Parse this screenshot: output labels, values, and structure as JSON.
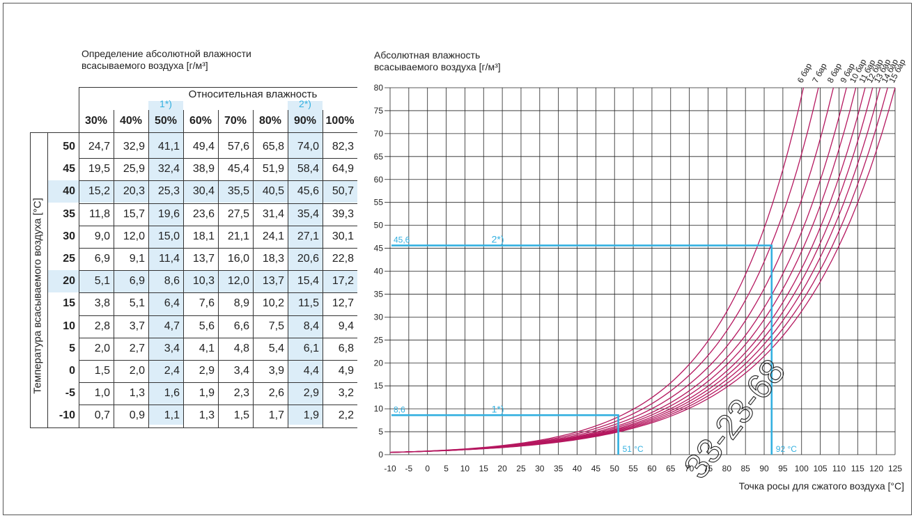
{
  "table": {
    "title_line1": "Определение абсолютной влажности",
    "title_line2": "всасываемого воздуха [г/м³]",
    "col_group_label": "Относительная влажность",
    "row_axis_label": "Температура всасываемого воздуха [°C]",
    "columns": [
      "30%",
      "40%",
      "50%",
      "60%",
      "70%",
      "80%",
      "90%",
      "100%"
    ],
    "rows": [
      {
        "t": "50",
        "v": [
          "24,7",
          "32,9",
          "41,1",
          "49,4",
          "57,6",
          "65,8",
          "74,0",
          "82,3"
        ]
      },
      {
        "t": "45",
        "v": [
          "19,5",
          "25,9",
          "32,4",
          "38,9",
          "45,4",
          "51,9",
          "58,4",
          "64,9"
        ]
      },
      {
        "t": "40",
        "v": [
          "15,2",
          "20,3",
          "25,3",
          "30,4",
          "35,5",
          "40,5",
          "45,6",
          "50,7"
        ]
      },
      {
        "t": "35",
        "v": [
          "11,8",
          "15,7",
          "19,6",
          "23,6",
          "27,5",
          "31,4",
          "35,4",
          "39,3"
        ]
      },
      {
        "t": "30",
        "v": [
          "9,0",
          "12,0",
          "15,0",
          "18,1",
          "21,1",
          "24,1",
          "27,1",
          "30,1"
        ]
      },
      {
        "t": "25",
        "v": [
          "6,9",
          "9,1",
          "11,4",
          "13,7",
          "16,0",
          "18,3",
          "20,6",
          "22,8"
        ]
      },
      {
        "t": "20",
        "v": [
          "5,1",
          "6,9",
          "8,6",
          "10,3",
          "12,0",
          "13,7",
          "15,4",
          "17,2"
        ]
      },
      {
        "t": "15",
        "v": [
          "3,8",
          "5,1",
          "6,4",
          "7,6",
          "8,9",
          "10,2",
          "11,5",
          "12,7"
        ]
      },
      {
        "t": "10",
        "v": [
          "2,8",
          "3,7",
          "4,7",
          "5,6",
          "6,6",
          "7,5",
          "8,4",
          "9,4"
        ]
      },
      {
        "t": "5",
        "v": [
          "2,0",
          "2,7",
          "3,4",
          "4,1",
          "4,8",
          "5,4",
          "6,1",
          "6,8"
        ]
      },
      {
        "t": "0",
        "v": [
          "1,5",
          "2,0",
          "2,4",
          "2,9",
          "3,4",
          "3,9",
          "4,4",
          "4,9"
        ]
      },
      {
        "t": "-5",
        "v": [
          "1,0",
          "1,3",
          "1,6",
          "1,9",
          "2,3",
          "2,6",
          "2,9",
          "3,2"
        ]
      },
      {
        "t": "-10",
        "v": [
          "0,7",
          "0,9",
          "1,1",
          "1,3",
          "1,5",
          "1,7",
          "1,9",
          "2,2"
        ]
      }
    ],
    "highlight_columns": [
      "50%",
      "90%"
    ],
    "highlight_rows": [
      "40",
      "20"
    ],
    "column_markers": [
      {
        "column": "50%",
        "label": "1*)"
      },
      {
        "column": "90%",
        "label": "2*)"
      }
    ],
    "highlight_color": "#dcedf8",
    "marker_color": "#33b0e0"
  },
  "chart_data": {
    "type": "line",
    "title": "Абсолютная влажность всасываемого воздуха [г/м³]",
    "ylabel": "Абсолютная влажность всасываемого воздуха [г/м³]",
    "xlabel": "Точка росы для сжатого воздуха [°C]",
    "xlim": [
      -10,
      125
    ],
    "ylim": [
      0,
      80
    ],
    "x_ticks": [
      -10,
      -5,
      0,
      5,
      10,
      15,
      20,
      25,
      30,
      35,
      40,
      45,
      50,
      55,
      60,
      65,
      70,
      75,
      80,
      85,
      90,
      95,
      100,
      105,
      110,
      115,
      120,
      125
    ],
    "y_ticks": [
      0,
      5,
      10,
      15,
      20,
      25,
      30,
      35,
      40,
      45,
      50,
      55,
      60,
      65,
      70,
      75,
      80
    ],
    "grid": true,
    "curve_color": "#b5175f",
    "series": [
      {
        "name": "6 бар",
        "pressure_bar": 6,
        "x_at_80": 100.5
      },
      {
        "name": "7 бар",
        "pressure_bar": 7,
        "x_at_80": 104.5
      },
      {
        "name": "8 бар",
        "pressure_bar": 8,
        "x_at_80": 108.5
      },
      {
        "name": "9 бар",
        "pressure_bar": 9,
        "x_at_80": 112
      },
      {
        "name": "10 бар",
        "pressure_bar": 10,
        "x_at_80": 114.5
      },
      {
        "name": "11 бар",
        "pressure_bar": 11,
        "x_at_80": 117
      },
      {
        "name": "12 бар",
        "pressure_bar": 12,
        "x_at_80": 119
      },
      {
        "name": "13 бар",
        "pressure_bar": 13,
        "x_at_80": 121
      },
      {
        "name": "14 бар",
        "pressure_bar": 14,
        "x_at_80": 123
      },
      {
        "name": "15 бар",
        "pressure_bar": 15,
        "x_at_80": 125
      }
    ],
    "curve_start": {
      "x": -10,
      "y": 0.5
    },
    "examples": [
      {
        "label": "1*)",
        "y": 8.6,
        "y_label": "8,6",
        "x": 51,
        "x_label": "51 °C"
      },
      {
        "label": "2*)",
        "y": 45.6,
        "y_label": "45,6",
        "x": 92,
        "x_label": "92 °C"
      }
    ],
    "example_color": "#33b0e0"
  },
  "watermark": "33-23-68"
}
